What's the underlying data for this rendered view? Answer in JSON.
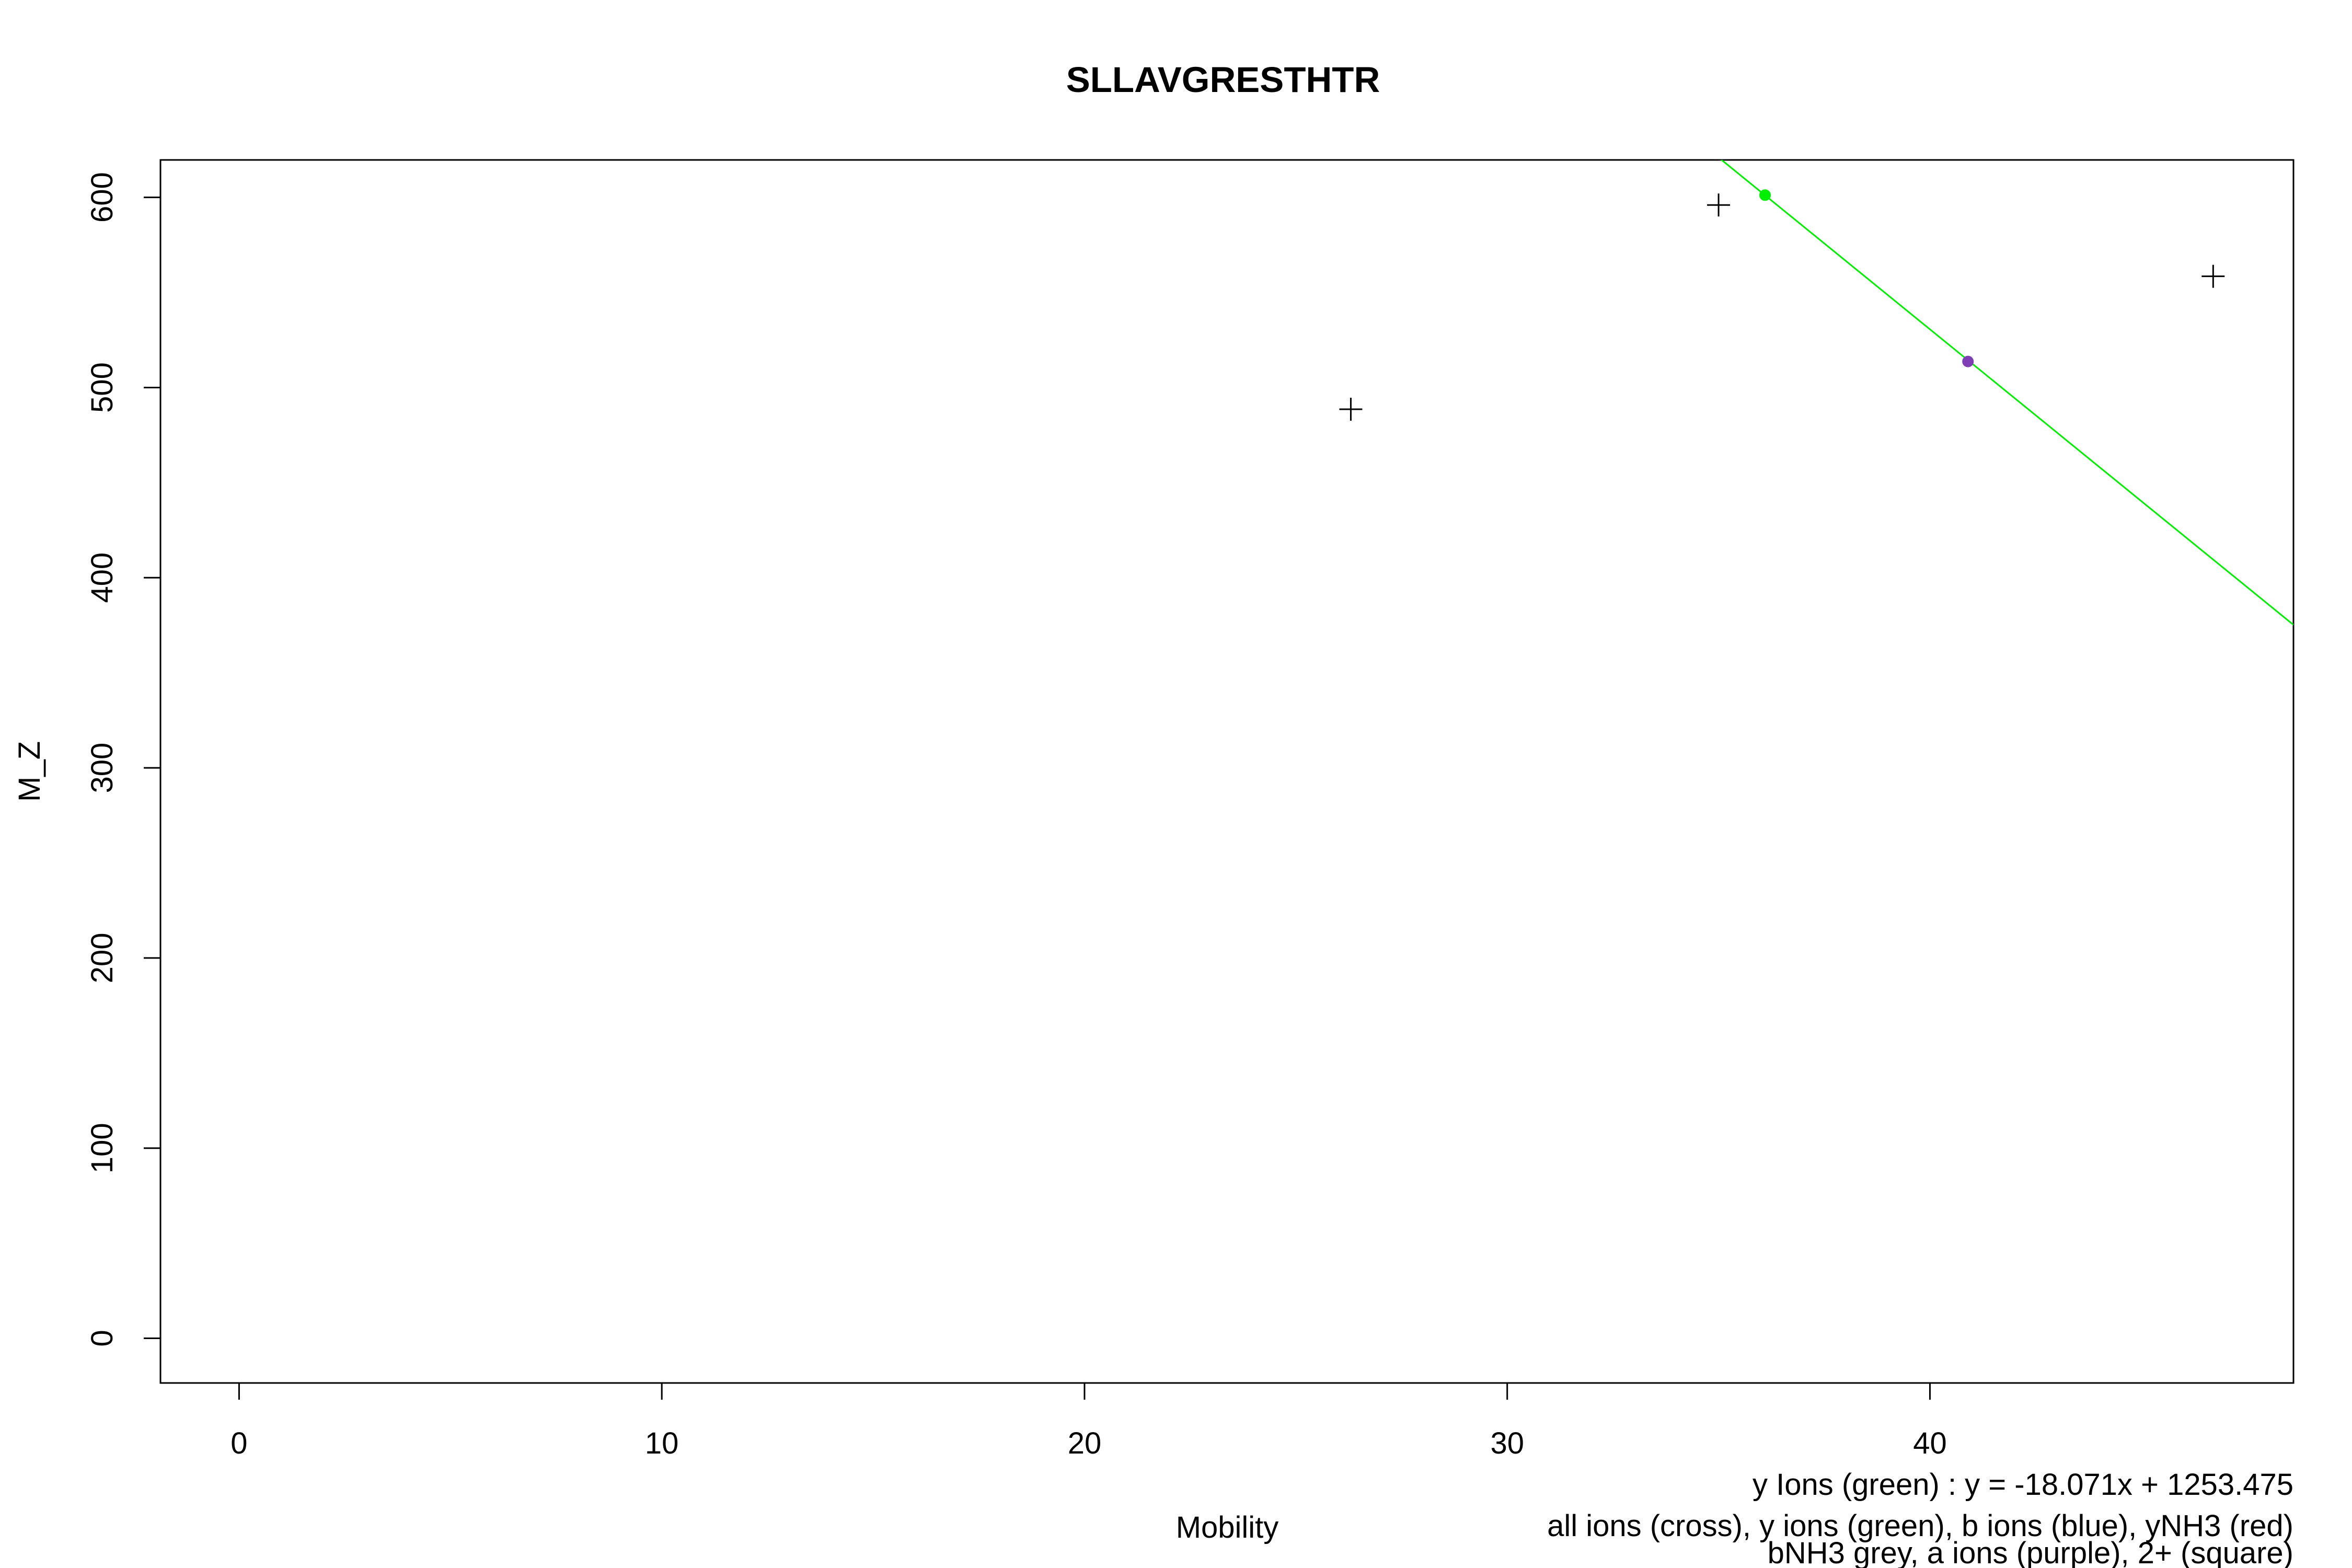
{
  "chart_data": {
    "type": "scatter",
    "title": "SLLAVGRESTHTR",
    "xlabel": "Mobility",
    "ylabel": "M_Z",
    "xlim": [
      -1.86,
      48.6
    ],
    "ylim": [
      -23.5,
      619.7
    ],
    "x_ticks": [
      0,
      10,
      20,
      30,
      40
    ],
    "y_ticks": [
      0,
      100,
      200,
      300,
      400,
      500,
      600
    ],
    "grid": false,
    "colors": {
      "cross": "#000000",
      "y_ion": "#00ee00",
      "a_ion": "#7d3fb3",
      "fit_line": "#00ee00"
    },
    "series": [
      {
        "name": "all ions (cross)",
        "marker": "cross",
        "points": [
          {
            "x": 26.3,
            "y": 488.6
          },
          {
            "x": 35.0,
            "y": 596.0
          },
          {
            "x": 46.7,
            "y": 558.5
          }
        ]
      },
      {
        "name": "y ions (green)",
        "marker": "dot",
        "points": [
          {
            "x": 36.1,
            "y": 601.2
          }
        ]
      },
      {
        "name": "a ions (purple)",
        "marker": "dot",
        "points": [
          {
            "x": 40.9,
            "y": 513.7
          }
        ]
      }
    ],
    "fit_line": {
      "slope": -18.071,
      "intercept": 1253.475
    },
    "annotations": [
      "y Ions (green) : y = -18.071x + 1253.475",
      "all ions (cross), y ions (green), b ions (blue), yNH3 (red)",
      "bNH3 grey, a ions (purple), 2+ (square)"
    ]
  }
}
